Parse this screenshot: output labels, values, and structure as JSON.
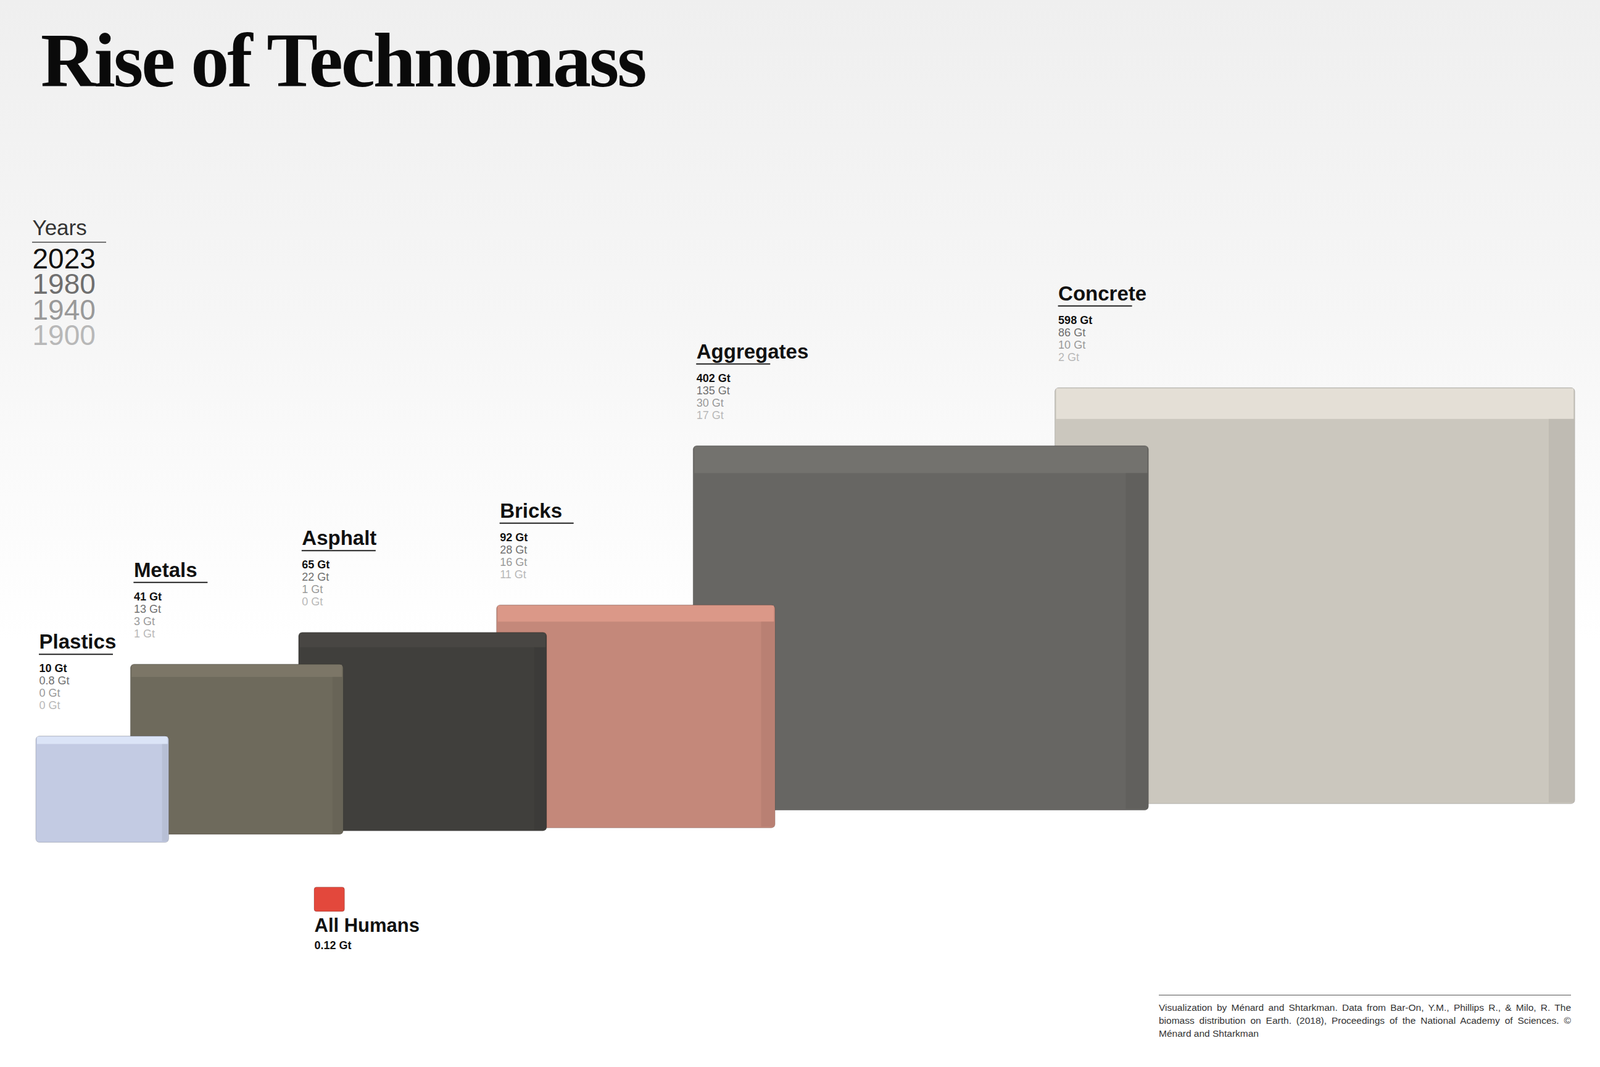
{
  "chart_data": {
    "type": "cube",
    "title": "Rise of Technomass",
    "legend_title": "Years",
    "legend": "top-left",
    "data_labels": true,
    "tick_labels": false,
    "categories": [
      "Plastics",
      "Metals",
      "Asphalt",
      "Bricks",
      "Aggregates",
      "Concrete"
    ],
    "colors": [
      "#c3cbe3",
      "#6e6a5c",
      "#403f3c",
      "#c4887a",
      "#676663",
      "#cbc7be"
    ],
    "series": [
      {
        "name": "2023",
        "color": "#111111",
        "values": [
          10,
          41,
          65,
          92,
          402,
          598
        ],
        "value_labels": [
          "10 Gt",
          "41 Gt",
          "65 Gt",
          "92 Gt",
          "402 Gt",
          "598 Gt"
        ]
      },
      {
        "name": "1980",
        "color": "#6f6f6f",
        "values": [
          0.8,
          13,
          22,
          28,
          135,
          86
        ],
        "value_labels": [
          "0.8 Gt",
          "13 Gt",
          "22 Gt",
          "28 Gt",
          "135 Gt",
          "86 Gt"
        ]
      },
      {
        "name": "1940",
        "color": "#999999",
        "values": [
          0,
          3,
          1,
          16,
          30,
          10
        ],
        "value_labels": [
          "0 Gt",
          "3 Gt",
          "1 Gt",
          "16 Gt",
          "30 Gt",
          "10 Gt"
        ]
      },
      {
        "name": "1900",
        "color": "#b8b8b8",
        "values": [
          0,
          1,
          0,
          11,
          17,
          2
        ],
        "value_labels": [
          "0 Gt",
          "1 Gt",
          "0 Gt",
          "11 Gt",
          "17 Gt",
          "2 Gt"
        ]
      }
    ],
    "annotations": [
      {
        "text": "All Humans",
        "value": 0.12,
        "label": "0.12 Gt",
        "color": "#e3483c"
      }
    ],
    "caption": "Visualization by Ménard and Shtarkman. Data from Bar-On, Y.M., Phillips R., & Milo, R. The biomass distribution on Earth. (2018), Proceedings of the National Academy of Sciences. © Ménard and Shtarkman"
  }
}
